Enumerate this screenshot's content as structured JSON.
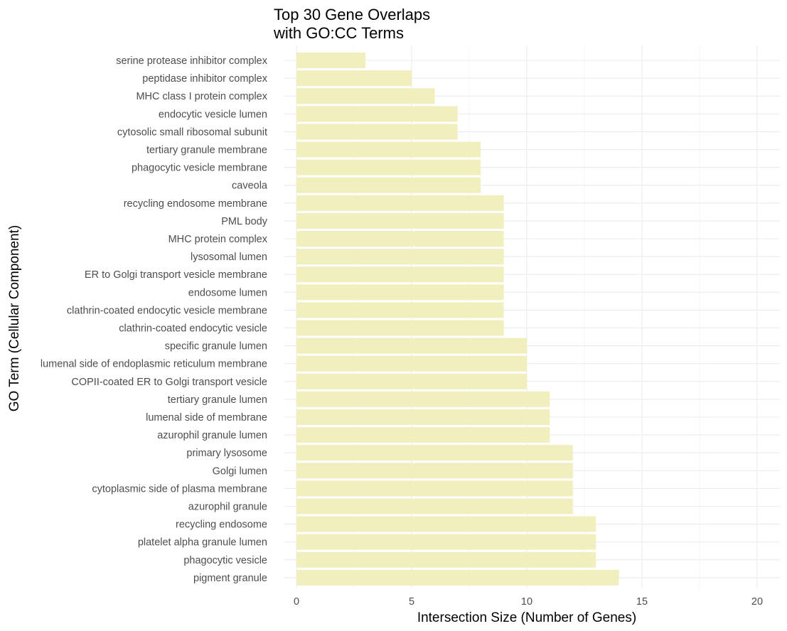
{
  "chart_data": {
    "type": "bar",
    "orientation": "horizontal",
    "title_lines": [
      "Top 30 Gene Overlaps",
      "with GO:CC Terms"
    ],
    "xlabel": "Intersection Size (Number of Genes)",
    "ylabel": "GO Term (Cellular Component)",
    "xlim": [
      0,
      21
    ],
    "xticks": [
      0,
      5,
      10,
      15,
      20
    ],
    "grid": true,
    "legend": "none",
    "bar_color": "#f2efbf",
    "categories": [
      "serine protease inhibitor complex",
      "peptidase inhibitor complex",
      "MHC class I protein complex",
      "endocytic vesicle lumen",
      "cytosolic small ribosomal subunit",
      "tertiary granule membrane",
      "phagocytic vesicle membrane",
      "caveola",
      "recycling endosome membrane",
      "PML body",
      "MHC protein complex",
      "lysosomal lumen",
      "ER to Golgi transport vesicle membrane",
      "endosome lumen",
      "clathrin-coated endocytic vesicle membrane",
      "clathrin-coated endocytic vesicle",
      "specific granule lumen",
      "lumenal side of endoplasmic reticulum membrane",
      "COPII-coated ER to Golgi transport vesicle",
      "tertiary granule lumen",
      "lumenal side of membrane",
      "azurophil granule lumen",
      "primary lysosome",
      "Golgi lumen",
      "cytoplasmic side of plasma membrane",
      "azurophil granule",
      "recycling endosome",
      "platelet alpha granule lumen",
      "phagocytic vesicle",
      "pigment granule"
    ],
    "values": [
      3,
      5,
      6,
      7,
      7,
      8,
      8,
      8,
      9,
      9,
      9,
      9,
      9,
      9,
      9,
      9,
      10,
      10,
      10,
      11,
      11,
      11,
      12,
      12,
      12,
      12,
      13,
      13,
      13,
      14
    ]
  }
}
